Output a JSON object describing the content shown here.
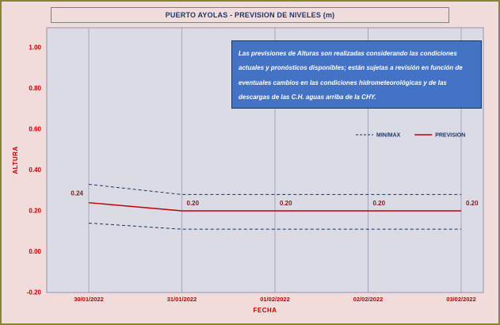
{
  "title": "PUERTO AYOLAS - PREVISION DE NIVELES (m)",
  "annotation": "Las previsiones de Alturas son realizadas considerando las condiciones actuales y pronósticos disponibles;  están sujetas a revisión en función de eventuales cambios en las condiciones hidrometeorológicas y de las descargas de las C.H. aguas arriba de la CHY.",
  "legend": [
    {
      "label": "MIN/MAX",
      "style": "dashed",
      "color": "#17365D"
    },
    {
      "label": "PREVISION",
      "style": "solid",
      "color": "#C00000"
    }
  ],
  "chart_data": {
    "type": "line",
    "title": "PUERTO AYOLAS - PREVISION DE NIVELES (m)",
    "xlabel": "FECHA",
    "ylabel": "ALTURA",
    "categories": [
      "30/01/2022",
      "31/01/2022",
      "01/02/2022",
      "02/02/2022",
      "03/02/2022"
    ],
    "series": [
      {
        "name": "MAX",
        "style": "dashed",
        "color": "#17365D",
        "values": [
          0.33,
          0.28,
          0.28,
          0.28,
          0.28
        ]
      },
      {
        "name": "PREVISION",
        "style": "solid",
        "color": "#C00000",
        "values": [
          0.24,
          0.2,
          0.2,
          0.2,
          0.2
        ],
        "labels": [
          "0.24",
          "0.20",
          "0.20",
          "0.20",
          "0.20"
        ]
      },
      {
        "name": "MIN",
        "style": "dashed",
        "color": "#17365D",
        "values": [
          0.14,
          0.11,
          0.11,
          0.11,
          0.11
        ]
      }
    ],
    "ylim": [
      -0.2,
      1.0
    ],
    "yticks": [
      "1.00",
      "0.80",
      "0.60",
      "0.40",
      "0.20",
      "0.00",
      "-0.20"
    ],
    "ytick_values": [
      1.0,
      0.8,
      0.6,
      0.4,
      0.2,
      0.0,
      -0.2
    ],
    "grid": "vertical",
    "legend_position": "inside-right"
  },
  "colors": {
    "background": "#F2DCDB",
    "frame_border": "#85862f",
    "plot_bg": "#DBDBE6",
    "plot_border": "#9393ab",
    "gridline": "#8e8ea6",
    "axis_text": "#C00000",
    "title_text": "#1F3864",
    "legend_text": "#1F3864",
    "annotation_bg": "#4472C4",
    "annotation_border": "#17365D",
    "data_label": "#7a1f1f"
  }
}
